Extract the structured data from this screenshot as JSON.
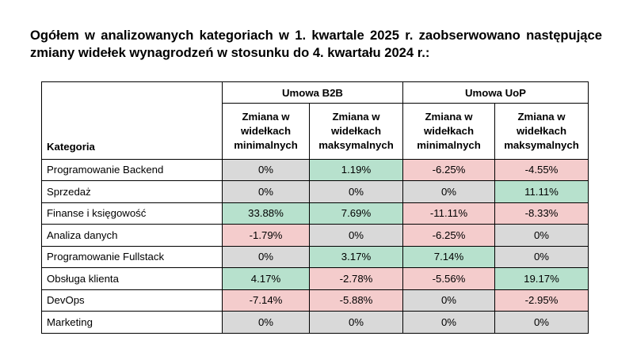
{
  "heading": "Ogółem w analizowanych kategoriach w 1. kwartale 2025 r. zaobserwowano następujące zmiany widełek wynagrodzeń w stosunku do 4. kwartału 2024 r.:",
  "colors": {
    "increase": "#b7e1cd",
    "decrease": "#f4cccc",
    "nochange": "#d9d9d9",
    "header": "#ffffff"
  },
  "table": {
    "groups": [
      "Umowa B2B",
      "Umowa UoP"
    ],
    "category_header": "Kategoria",
    "subheaders": [
      "Zmiana w widełkach minimalnych",
      "Zmiana w widełkach maksymalnych",
      "Zmiana w widełkach minimalnych",
      "Zmiana w widełkach maksymalnych"
    ],
    "rows": [
      {
        "category": "Programowanie Backend",
        "values": [
          "0%",
          "1.19%",
          "-6.25%",
          "-4.55%"
        ],
        "status": [
          "nochange",
          "increase",
          "decrease",
          "decrease"
        ]
      },
      {
        "category": "Sprzedaż",
        "values": [
          "0%",
          "0%",
          "0%",
          "11.11%"
        ],
        "status": [
          "nochange",
          "nochange",
          "nochange",
          "increase"
        ]
      },
      {
        "category": "Finanse i księgowość",
        "values": [
          "33.88%",
          "7.69%",
          "-11.11%",
          "-8.33%"
        ],
        "status": [
          "increase",
          "increase",
          "decrease",
          "decrease"
        ]
      },
      {
        "category": "Analiza danych",
        "values": [
          "-1.79%",
          "0%",
          "-6.25%",
          "0%"
        ],
        "status": [
          "decrease",
          "nochange",
          "decrease",
          "nochange"
        ]
      },
      {
        "category": "Programowanie Fullstack",
        "values": [
          "0%",
          "3.17%",
          "7.14%",
          "0%"
        ],
        "status": [
          "nochange",
          "increase",
          "increase",
          "nochange"
        ]
      },
      {
        "category": "Obsługa klienta",
        "values": [
          "4.17%",
          "-2.78%",
          "-5.56%",
          "19.17%"
        ],
        "status": [
          "increase",
          "decrease",
          "decrease",
          "increase"
        ]
      },
      {
        "category": "DevOps",
        "values": [
          "-7.14%",
          "-5.88%",
          "0%",
          "-2.95%"
        ],
        "status": [
          "decrease",
          "decrease",
          "nochange",
          "decrease"
        ]
      },
      {
        "category": "Marketing",
        "values": [
          "0%",
          "0%",
          "0%",
          "0%"
        ],
        "status": [
          "nochange",
          "nochange",
          "nochange",
          "nochange"
        ]
      }
    ]
  }
}
